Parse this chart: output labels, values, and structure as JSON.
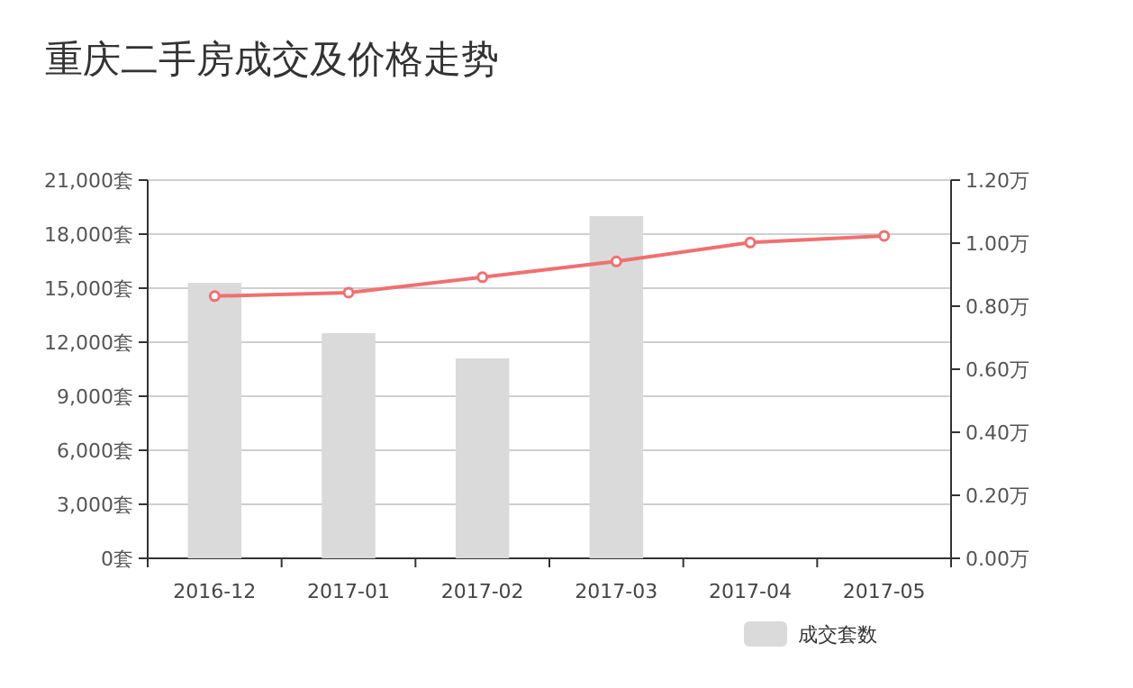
{
  "chart_data": {
    "type": "bar",
    "title": "重庆二手房成交及价格走势",
    "categories": [
      "2016-12",
      "2017-01",
      "2017-02",
      "2017-03",
      "2017-04",
      "2017-05"
    ],
    "series": [
      {
        "name": "成交套数",
        "color": "#dadada",
        "values": [
          15300,
          12500,
          11100,
          19000,
          null,
          null
        ]
      },
      {
        "type": "line",
        "axis": "y2",
        "color": "#f07070",
        "marker": "circle",
        "values": [
          0.832,
          0.843,
          0.892,
          0.942,
          1.002,
          1.023
        ]
      }
    ],
    "ylim": [
      0,
      21000
    ],
    "yticks": [
      {
        "value": 0,
        "label": "0套"
      },
      {
        "value": 3000,
        "label": "3,000套"
      },
      {
        "value": 6000,
        "label": "6,000套"
      },
      {
        "value": 9000,
        "label": "9,000套"
      },
      {
        "value": 12000,
        "label": "12,000套"
      },
      {
        "value": 15000,
        "label": "15,000套"
      },
      {
        "value": 18000,
        "label": "18,000套"
      },
      {
        "value": 21000,
        "label": "21,000套"
      }
    ],
    "y2lim": [
      0,
      1.2
    ],
    "y2ticks": [
      {
        "value": 0,
        "label": "0.00万"
      },
      {
        "value": 0.2,
        "label": "0.20万"
      },
      {
        "value": 0.4,
        "label": "0.40万"
      },
      {
        "value": 0.6,
        "label": "0.60万"
      },
      {
        "value": 0.8,
        "label": "0.80万"
      },
      {
        "value": 1.0,
        "label": "1.00万"
      },
      {
        "value": 1.2,
        "label": "1.20万"
      }
    ],
    "grid": "y",
    "legend": "bottom right"
  }
}
